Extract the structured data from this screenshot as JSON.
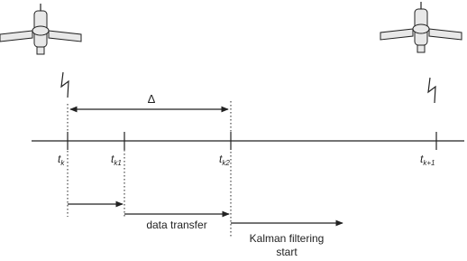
{
  "diagram": {
    "delta": "Δ",
    "ticks": [
      {
        "label": "t",
        "sub": "k"
      },
      {
        "label": "t",
        "sub": "k1"
      },
      {
        "label": "t",
        "sub": "k2"
      },
      {
        "label": "t",
        "sub": "k+1"
      }
    ],
    "data_transfer": "data transfer",
    "kalman": [
      "Kalman filtering",
      "start"
    ]
  }
}
